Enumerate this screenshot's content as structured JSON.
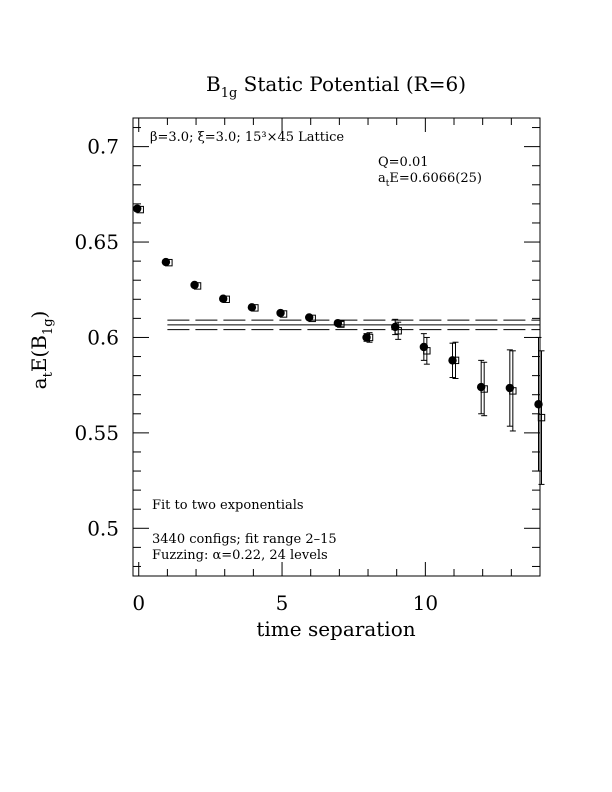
{
  "chart_data": {
    "type": "scatter",
    "title_main": "B",
    "title_sub": "1g",
    "title_rest": " Static Potential (R=6)",
    "xlabel": "time separation",
    "ylabel_main": "a",
    "ylabel_sub1": "t",
    "ylabel_mid": "E(B",
    "ylabel_sub2": "1g",
    "ylabel_end": ")",
    "xlim": [
      -0.2,
      14.0
    ],
    "ylim": [
      0.475,
      0.715
    ],
    "x_ticks": [
      0,
      5,
      10
    ],
    "x_tick_labels": [
      "0",
      "5",
      "10"
    ],
    "y_ticks": [
      0.5,
      0.55,
      0.6,
      0.65,
      0.7
    ],
    "y_tick_labels": [
      "0.5",
      "0.55",
      "0.6",
      "0.65",
      "0.7"
    ],
    "annotations": {
      "lattice": "β=3.0; ξ=3.0; 15³×45 Lattice",
      "q": "Q=0.01",
      "energy_a": "a",
      "energy_sub": "t",
      "energy_rest": "E=0.6066(25)",
      "fit": "Fit to two exponentials",
      "configs": "3440 configs; fit range 2–15",
      "fuzzing": "Fuzzing: α=0.22, 24 levels"
    },
    "fit": {
      "x_range": [
        1.0,
        14.0
      ],
      "center": 0.6066,
      "error": 0.0025
    },
    "series": [
      {
        "marker": "filled-circle",
        "points": [
          {
            "x": 0,
            "y": 0.6675,
            "err": 0.0005
          },
          {
            "x": 1,
            "y": 0.6395,
            "err": 0.0005
          },
          {
            "x": 2,
            "y": 0.6275,
            "err": 0.0005
          },
          {
            "x": 3,
            "y": 0.6203,
            "err": 0.0005
          },
          {
            "x": 4,
            "y": 0.6158,
            "err": 0.0006
          },
          {
            "x": 5,
            "y": 0.6128,
            "err": 0.0007
          },
          {
            "x": 6,
            "y": 0.6105,
            "err": 0.0008
          },
          {
            "x": 7,
            "y": 0.6075,
            "err": 0.0012
          },
          {
            "x": 8,
            "y": 0.6,
            "err": 0.002
          },
          {
            "x": 9,
            "y": 0.6055,
            "err": 0.004
          },
          {
            "x": 10,
            "y": 0.595,
            "err": 0.007
          },
          {
            "x": 11,
            "y": 0.588,
            "err": 0.009
          },
          {
            "x": 12,
            "y": 0.574,
            "err": 0.014
          },
          {
            "x": 13,
            "y": 0.5735,
            "err": 0.02
          },
          {
            "x": 14,
            "y": 0.565,
            "err": 0.035
          }
        ]
      },
      {
        "marker": "open-square",
        "points": [
          {
            "x": 0,
            "y": 0.667,
            "err": 0.0006
          },
          {
            "x": 1,
            "y": 0.6392,
            "err": 0.0006
          },
          {
            "x": 2,
            "y": 0.627,
            "err": 0.0006
          },
          {
            "x": 3,
            "y": 0.62,
            "err": 0.0006
          },
          {
            "x": 4,
            "y": 0.6155,
            "err": 0.0007
          },
          {
            "x": 5,
            "y": 0.6123,
            "err": 0.0008
          },
          {
            "x": 6,
            "y": 0.61,
            "err": 0.0009
          },
          {
            "x": 7,
            "y": 0.607,
            "err": 0.0014
          },
          {
            "x": 8,
            "y": 0.6,
            "err": 0.0025
          },
          {
            "x": 9,
            "y": 0.6035,
            "err": 0.0045
          },
          {
            "x": 10,
            "y": 0.593,
            "err": 0.007
          },
          {
            "x": 11,
            "y": 0.588,
            "err": 0.0095
          },
          {
            "x": 12,
            "y": 0.573,
            "err": 0.014
          },
          {
            "x": 13,
            "y": 0.572,
            "err": 0.021
          },
          {
            "x": 14,
            "y": 0.558,
            "err": 0.035
          }
        ]
      }
    ]
  }
}
